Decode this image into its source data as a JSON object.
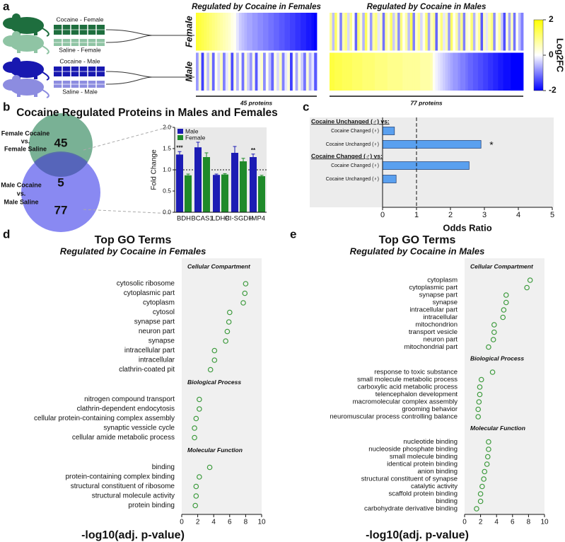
{
  "panel_labels": [
    "a",
    "b",
    "c",
    "d",
    "e"
  ],
  "groups": [
    "Cocaine - Female",
    "Saline - Female",
    "Cocaine - Male",
    "Saline - Male"
  ],
  "colorbar": {
    "label": "Log2FC",
    "lim": [
      -2,
      2
    ],
    "ticks": [
      2,
      0,
      -2
    ],
    "colors": [
      "#0000ff",
      "#ffffff",
      "#ffff00"
    ]
  },
  "venn": {
    "title": "Cocaine Regulated Proteins in Males and Females",
    "sets": [
      {
        "label": [
          "Female Cocaine",
          "vs.",
          "Female Saline"
        ],
        "count": 45
      },
      {
        "label": [
          "Male Cocaine",
          "vs.",
          "Male Saline"
        ],
        "count": 77
      }
    ],
    "overlap": 5
  },
  "chart_data": [
    {
      "type": "heatmap",
      "title": "Regulated by Cocaine in Females",
      "xlabel": "45 proteins",
      "rows": [
        "Female",
        "Male"
      ],
      "values": [
        [
          1.6,
          1.5,
          1.4,
          1.3,
          1.2,
          1.1,
          1.0,
          0.9,
          0.8,
          0.7,
          0.6,
          0.5,
          0.4,
          0.2,
          0.1,
          -0.2,
          -0.4,
          -0.5,
          -0.6,
          -0.7,
          -0.7,
          -0.8,
          -0.8,
          -0.9,
          -0.9,
          -1.0,
          -1.0,
          -1.1,
          -1.1,
          -1.2,
          -1.2,
          -1.3,
          -1.3,
          -1.4,
          -1.4,
          -1.5,
          -1.5,
          -1.6,
          -1.6,
          -1.7,
          -1.7,
          -1.8,
          -1.8,
          -1.9,
          -2.0
        ],
        [
          -0.8,
          0.3,
          -1.5,
          0.2,
          -0.5,
          0.4,
          -1.2,
          0.1,
          -0.3,
          0.5,
          -1.0,
          -0.2,
          0.3,
          -1.4,
          0.2,
          -0.6,
          0.1,
          -1.1,
          0.3,
          -0.4,
          -0.8,
          0.2,
          -1.3,
          -0.1,
          0.4,
          -0.9,
          0.1,
          -0.5,
          -1.2,
          0.2,
          -0.3,
          0.5,
          -1.0,
          -0.2,
          0.3,
          -1.5,
          0.1,
          -0.7,
          0.2,
          -0.4,
          -1.1,
          0.3,
          -0.6,
          -0.2,
          -1.3
        ]
      ]
    },
    {
      "type": "heatmap",
      "title": "Regulated by Cocaine in Males",
      "xlabel": "77 proteins",
      "values": [
        [
          0.8,
          -0.5,
          1.2,
          0.2,
          -1.0,
          0.6,
          1.0,
          -0.3,
          0.9,
          0.1,
          -1.2,
          1.1,
          0.4,
          -0.6,
          1.3,
          0.2,
          -0.8,
          0.7,
          1.0,
          -0.2,
          0.5,
          -1.1,
          0.8,
          0.3,
          1.2,
          -0.4,
          0.6,
          -0.9,
          1.0,
          0.1,
          0.7,
          -0.5,
          1.3,
          -1.0,
          0.4,
          0.9,
          -0.3,
          0.2,
          1.1,
          -0.7,
          0.5,
          0.8,
          -1.2,
          0.3,
          1.0,
          -0.2,
          0.6,
          -0.8,
          1.2,
          0.1,
          0.7,
          -0.5,
          0.9,
          -1.0,
          0.4,
          0.2,
          1.1,
          -0.6,
          0.3,
          0.8,
          -1.3,
          0.5,
          -0.2,
          0.6,
          1.0,
          -0.9,
          0.2,
          0.7,
          -0.4,
          -1.4,
          0.3,
          -0.7,
          0.5,
          -1.1,
          0.1,
          -0.5,
          -1.0
        ],
        [
          1.5,
          1.5,
          1.4,
          1.4,
          1.4,
          1.3,
          1.3,
          1.3,
          1.3,
          1.2,
          1.2,
          1.2,
          1.2,
          1.1,
          1.1,
          1.1,
          1.1,
          1.1,
          1.0,
          1.0,
          1.0,
          1.0,
          1.0,
          0.9,
          0.9,
          0.9,
          0.9,
          0.9,
          0.9,
          0.8,
          0.8,
          0.8,
          0.8,
          0.8,
          0.8,
          0.8,
          0.7,
          0.7,
          0.7,
          0.7,
          0.6,
          0.1,
          -0.1,
          -0.2,
          -0.3,
          -0.4,
          -0.5,
          -0.6,
          -0.7,
          -0.8,
          -0.8,
          -0.9,
          -1.0,
          -1.0,
          -1.1,
          -1.2,
          -1.2,
          -1.3,
          -1.3,
          -1.4,
          -1.4,
          -1.5,
          -1.5,
          -1.6,
          -1.6,
          -1.7,
          -1.7,
          -1.8,
          -1.8,
          -1.9,
          -1.9,
          -1.9,
          -2.0,
          -2.0,
          -2.0,
          -2.0,
          -2.0
        ]
      ]
    },
    {
      "type": "bar",
      "ylabel": "Fold Change",
      "categories": [
        "BDH",
        "BCAS1",
        "LDHB",
        "CI-SGDH",
        "IMP4"
      ],
      "series": [
        {
          "name": "Male",
          "color": "#1c1cb4",
          "values": [
            1.36,
            1.53,
            0.88,
            1.4,
            1.3
          ],
          "errors": [
            0.07,
            0.12,
            0.02,
            0.15,
            0.07
          ],
          "significance": [
            "***",
            null,
            null,
            null,
            "**"
          ]
        },
        {
          "name": "Female",
          "color": "#1f8a2a",
          "values": [
            0.87,
            1.3,
            0.89,
            1.2,
            0.85
          ],
          "errors": [
            0.03,
            0.1,
            0.02,
            0.07,
            0.02
          ],
          "significance": [
            null,
            null,
            null,
            null,
            null
          ]
        }
      ],
      "ylim": [
        0,
        2
      ],
      "yticks": [
        {
          "value": 0,
          "label": "0.0"
        },
        0.5,
        {
          "value": 1,
          "label": "1.0"
        },
        1.5,
        {
          "value": 2,
          "label": "2.0"
        }
      ],
      "reference": 1,
      "legend": "top-left"
    },
    {
      "type": "barh",
      "xlabel": "Odds Ratio",
      "color": "#5aa0ef",
      "groups": [
        {
          "name": "Cocaine Unchanged (♂) vs:",
          "categories": [
            "Cocaine Changed (♀)",
            "Cocaine Unchanged (♀)"
          ],
          "values": [
            0.35,
            2.9
          ],
          "significance": [
            null,
            "*"
          ]
        },
        {
          "name": "Cocaine Changed (♂) vs:",
          "categories": [
            "Cocaine Changed (♀)",
            "Cocaine Unchanged (♀)"
          ],
          "values": [
            2.55,
            0.4
          ],
          "significance": [
            null,
            null
          ]
        }
      ],
      "xlim": [
        0,
        5
      ],
      "xticks": [
        0,
        1,
        2,
        3,
        4,
        5
      ],
      "reference": 1
    },
    {
      "type": "dot",
      "title": "Top GO Terms",
      "subtitle": "Regulated by Cocaine in Females",
      "xlabel": "-log10(adj. p-value)",
      "color": "#3c9a3c",
      "sections": [
        {
          "name": "Cellular Compartment",
          "categories": [
            "cytosolic ribosome",
            "cytoplasmic part",
            "cytoplasm",
            "cytosol",
            "synapse part",
            "neuron part",
            "synapse",
            "intracellular part",
            "intracellular",
            "clathrin-coated pit"
          ],
          "values": [
            8.0,
            7.9,
            7.7,
            6.0,
            5.9,
            5.7,
            5.5,
            4.1,
            4.1,
            3.6
          ]
        },
        {
          "name": "Biological Process",
          "categories": [
            "nitrogen compound transport",
            "clathrin-dependent endocytosis",
            "cellular protein-containing complex assembly",
            "synaptic vessicle cycle",
            "cellular amide metabolic process"
          ],
          "values": [
            2.2,
            2.2,
            1.8,
            1.6,
            1.6
          ]
        },
        {
          "name": "Molecular Function",
          "categories": [
            "binding",
            "protein-containing complex binding",
            "structural constituent of ribosome",
            "structural molecule activity",
            "protein binding"
          ],
          "values": [
            3.5,
            2.2,
            1.8,
            1.8,
            1.7
          ]
        }
      ],
      "xlim": [
        0,
        10
      ],
      "xticks": [
        0,
        2,
        4,
        6,
        8,
        10
      ]
    },
    {
      "type": "dot",
      "title": "Top GO Terms",
      "subtitle": "Regulated by Cocaine in Males",
      "xlabel": "-log10(adj. p-value)",
      "color": "#3c9a3c",
      "sections": [
        {
          "name": "Cellular Compartment",
          "categories": [
            "cytoplasm",
            "cytoplasmic part",
            "synapse part",
            "synapse",
            "intracellular part",
            "intracellular",
            "mitochondrion",
            "transport vesicle",
            "neuron part",
            "mitochondrial part"
          ],
          "values": [
            8.2,
            7.8,
            5.2,
            5.2,
            4.9,
            4.8,
            3.7,
            3.7,
            3.6,
            3.0
          ]
        },
        {
          "name": "Biological Process",
          "categories": [
            "response to toxic substance",
            "small molecule metabolic process",
            "carboxylic acid metabolic process",
            "telencephalon development",
            "macromolecular complex assembly",
            "grooming behavior",
            "neuromuscular process controlling balance"
          ],
          "values": [
            3.5,
            2.1,
            1.9,
            1.9,
            1.8,
            1.7,
            1.7
          ]
        },
        {
          "name": "Molecular Function",
          "categories": [
            "nucleotide binding",
            "nucleoside phosphate binding",
            "small molecule binding",
            "identical protein binding",
            "anion binding",
            "structural constituent of synapse",
            "catalytic activity",
            "scaffold protein binding",
            "binding",
            "carbohydrate derivative binding"
          ],
          "values": [
            3.0,
            3.0,
            2.9,
            2.8,
            2.5,
            2.4,
            2.2,
            2.0,
            2.0,
            1.5
          ]
        }
      ],
      "xlim": [
        0,
        10
      ],
      "xticks": [
        0,
        2,
        4,
        6,
        8,
        10
      ]
    }
  ]
}
